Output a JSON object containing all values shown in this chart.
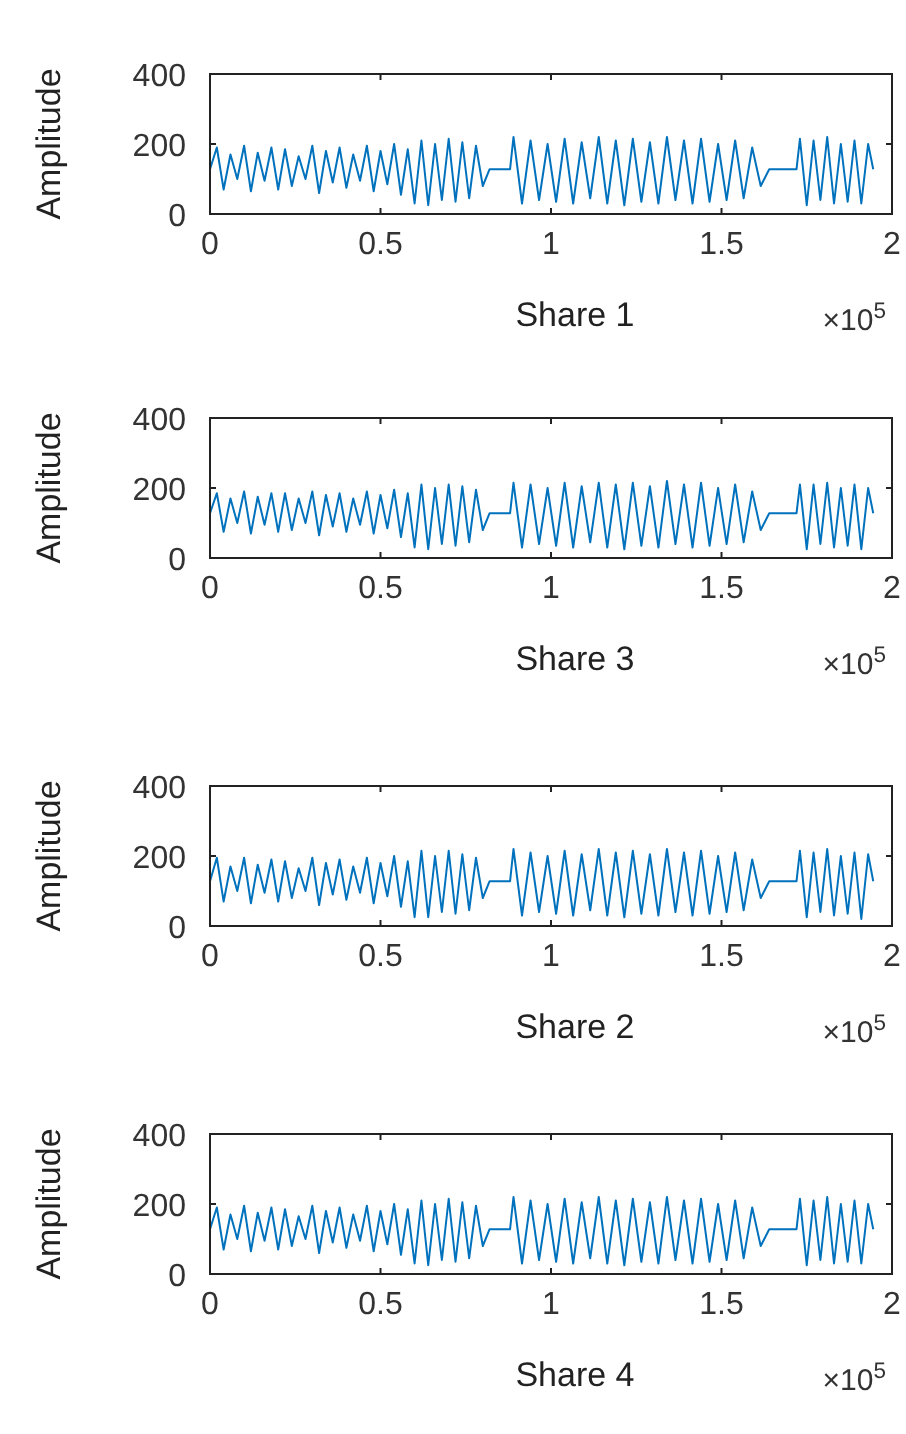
{
  "chart_data": [
    {
      "type": "line",
      "xlabel": "Share 1",
      "ylabel": "Amplitude",
      "annotations": [
        "×10$^{5}$"
      ],
      "xlim": [
        0,
        2
      ],
      "ylim": [
        0,
        400
      ],
      "yticks": [
        0,
        200,
        400
      ],
      "xticks": [
        0,
        0.5,
        1,
        1.5,
        2
      ],
      "x": [
        0,
        0.02,
        0.04,
        0.06,
        0.08,
        0.1,
        0.12,
        0.14,
        0.16,
        0.18,
        0.2,
        0.22,
        0.24,
        0.26,
        0.28,
        0.3,
        0.32,
        0.34,
        0.36,
        0.38,
        0.4,
        0.42,
        0.44,
        0.46,
        0.48,
        0.5,
        0.52,
        0.54,
        0.56,
        0.58,
        0.6,
        0.62,
        0.64,
        0.66,
        0.68,
        0.7,
        0.72,
        0.74,
        0.76,
        0.78,
        0.8,
        0.82,
        0.88,
        0.89,
        0.915,
        0.94,
        0.965,
        0.99,
        1.015,
        1.04,
        1.065,
        1.09,
        1.115,
        1.14,
        1.165,
        1.19,
        1.215,
        1.24,
        1.265,
        1.29,
        1.315,
        1.34,
        1.365,
        1.39,
        1.415,
        1.44,
        1.465,
        1.49,
        1.515,
        1.54,
        1.565,
        1.59,
        1.615,
        1.64,
        1.72,
        1.73,
        1.75,
        1.77,
        1.79,
        1.81,
        1.83,
        1.85,
        1.87,
        1.89,
        1.91,
        1.93,
        1.945
      ],
      "series": [
        {
          "color": "#0072bd",
          "values": [
            128,
            190,
            70,
            170,
            100,
            195,
            65,
            175,
            95,
            190,
            70,
            185,
            80,
            165,
            100,
            195,
            60,
            180,
            90,
            190,
            75,
            170,
            95,
            195,
            65,
            180,
            85,
            200,
            55,
            185,
            30,
            210,
            25,
            200,
            40,
            215,
            35,
            205,
            45,
            195,
            80,
            128,
            128,
            220,
            30,
            210,
            40,
            200,
            35,
            215,
            30,
            205,
            45,
            220,
            30,
            210,
            25,
            215,
            35,
            205,
            30,
            220,
            40,
            210,
            30,
            215,
            35,
            200,
            40,
            210,
            45,
            190,
            80,
            128,
            128,
            215,
            25,
            210,
            40,
            220,
            30,
            200,
            35,
            210,
            30,
            200,
            128
          ]
        }
      ]
    },
    {
      "type": "line",
      "xlabel": "Share 3",
      "ylabel": "Amplitude",
      "annotations": [
        "×10$^{5}$"
      ],
      "xlim": [
        0,
        2
      ],
      "ylim": [
        0,
        400
      ],
      "yticks": [
        0,
        200,
        400
      ],
      "xticks": [
        0,
        0.5,
        1,
        1.5,
        2
      ],
      "x": [
        0,
        0.02,
        0.04,
        0.06,
        0.08,
        0.1,
        0.12,
        0.14,
        0.16,
        0.18,
        0.2,
        0.22,
        0.24,
        0.26,
        0.28,
        0.3,
        0.32,
        0.34,
        0.36,
        0.38,
        0.4,
        0.42,
        0.44,
        0.46,
        0.48,
        0.5,
        0.52,
        0.54,
        0.56,
        0.58,
        0.6,
        0.62,
        0.64,
        0.66,
        0.68,
        0.7,
        0.72,
        0.74,
        0.76,
        0.78,
        0.8,
        0.82,
        0.88,
        0.89,
        0.915,
        0.94,
        0.965,
        0.99,
        1.015,
        1.04,
        1.065,
        1.09,
        1.115,
        1.14,
        1.165,
        1.19,
        1.215,
        1.24,
        1.265,
        1.29,
        1.315,
        1.34,
        1.365,
        1.39,
        1.415,
        1.44,
        1.465,
        1.49,
        1.515,
        1.54,
        1.565,
        1.59,
        1.615,
        1.64,
        1.72,
        1.73,
        1.75,
        1.77,
        1.79,
        1.81,
        1.83,
        1.85,
        1.87,
        1.89,
        1.91,
        1.93,
        1.945
      ],
      "series": [
        {
          "color": "#0072bd",
          "values": [
            128,
            185,
            75,
            170,
            100,
            190,
            70,
            175,
            95,
            185,
            75,
            185,
            80,
            170,
            100,
            190,
            65,
            180,
            90,
            185,
            75,
            170,
            95,
            190,
            70,
            180,
            85,
            195,
            60,
            185,
            30,
            210,
            25,
            200,
            40,
            210,
            35,
            205,
            45,
            195,
            80,
            128,
            128,
            215,
            30,
            210,
            40,
            200,
            35,
            215,
            30,
            205,
            45,
            215,
            30,
            210,
            25,
            215,
            35,
            205,
            30,
            220,
            40,
            210,
            30,
            215,
            35,
            200,
            40,
            210,
            45,
            190,
            80,
            128,
            128,
            210,
            25,
            210,
            40,
            215,
            30,
            200,
            35,
            210,
            25,
            200,
            128
          ]
        }
      ]
    },
    {
      "type": "line",
      "xlabel": "Share 2",
      "ylabel": "Amplitude",
      "annotations": [
        "×10$^{5}$"
      ],
      "xlim": [
        0,
        2
      ],
      "ylim": [
        0,
        400
      ],
      "yticks": [
        0,
        200,
        400
      ],
      "xticks": [
        0,
        0.5,
        1,
        1.5,
        2
      ],
      "x": [
        0,
        0.02,
        0.04,
        0.06,
        0.08,
        0.1,
        0.12,
        0.14,
        0.16,
        0.18,
        0.2,
        0.22,
        0.24,
        0.26,
        0.28,
        0.3,
        0.32,
        0.34,
        0.36,
        0.38,
        0.4,
        0.42,
        0.44,
        0.46,
        0.48,
        0.5,
        0.52,
        0.54,
        0.56,
        0.58,
        0.6,
        0.62,
        0.64,
        0.66,
        0.68,
        0.7,
        0.72,
        0.74,
        0.76,
        0.78,
        0.8,
        0.82,
        0.88,
        0.89,
        0.915,
        0.94,
        0.965,
        0.99,
        1.015,
        1.04,
        1.065,
        1.09,
        1.115,
        1.14,
        1.165,
        1.19,
        1.215,
        1.24,
        1.265,
        1.29,
        1.315,
        1.34,
        1.365,
        1.39,
        1.415,
        1.44,
        1.465,
        1.49,
        1.515,
        1.54,
        1.565,
        1.59,
        1.615,
        1.64,
        1.72,
        1.73,
        1.75,
        1.77,
        1.79,
        1.81,
        1.83,
        1.85,
        1.87,
        1.89,
        1.91,
        1.93,
        1.945
      ],
      "series": [
        {
          "color": "#0072bd",
          "values": [
            128,
            195,
            70,
            170,
            100,
            195,
            65,
            175,
            95,
            190,
            70,
            185,
            80,
            165,
            100,
            195,
            60,
            180,
            90,
            190,
            75,
            170,
            95,
            195,
            65,
            180,
            85,
            200,
            55,
            185,
            25,
            215,
            25,
            200,
            40,
            215,
            35,
            205,
            45,
            195,
            80,
            128,
            128,
            220,
            30,
            210,
            40,
            200,
            35,
            215,
            30,
            205,
            45,
            220,
            30,
            210,
            25,
            215,
            35,
            205,
            30,
            220,
            40,
            210,
            30,
            215,
            35,
            200,
            40,
            210,
            45,
            190,
            80,
            128,
            128,
            215,
            25,
            210,
            40,
            220,
            30,
            200,
            35,
            210,
            20,
            205,
            128
          ]
        }
      ]
    },
    {
      "type": "line",
      "xlabel": "Share 4",
      "ylabel": "Amplitude",
      "annotations": [
        "×10$^{5}$"
      ],
      "xlim": [
        0,
        2
      ],
      "ylim": [
        0,
        400
      ],
      "yticks": [
        0,
        200,
        400
      ],
      "xticks": [
        0,
        0.5,
        1,
        1.5,
        2
      ],
      "x": [
        0,
        0.02,
        0.04,
        0.06,
        0.08,
        0.1,
        0.12,
        0.14,
        0.16,
        0.18,
        0.2,
        0.22,
        0.24,
        0.26,
        0.28,
        0.3,
        0.32,
        0.34,
        0.36,
        0.38,
        0.4,
        0.42,
        0.44,
        0.46,
        0.48,
        0.5,
        0.52,
        0.54,
        0.56,
        0.58,
        0.6,
        0.62,
        0.64,
        0.66,
        0.68,
        0.7,
        0.72,
        0.74,
        0.76,
        0.78,
        0.8,
        0.82,
        0.88,
        0.89,
        0.915,
        0.94,
        0.965,
        0.99,
        1.015,
        1.04,
        1.065,
        1.09,
        1.115,
        1.14,
        1.165,
        1.19,
        1.215,
        1.24,
        1.265,
        1.29,
        1.315,
        1.34,
        1.365,
        1.39,
        1.415,
        1.44,
        1.465,
        1.49,
        1.515,
        1.54,
        1.565,
        1.59,
        1.615,
        1.64,
        1.72,
        1.73,
        1.75,
        1.77,
        1.79,
        1.81,
        1.83,
        1.85,
        1.87,
        1.89,
        1.91,
        1.93,
        1.945
      ],
      "series": [
        {
          "color": "#0072bd",
          "values": [
            128,
            190,
            70,
            170,
            100,
            195,
            65,
            175,
            95,
            190,
            70,
            185,
            80,
            165,
            100,
            195,
            60,
            180,
            90,
            190,
            75,
            170,
            95,
            195,
            65,
            180,
            85,
            200,
            55,
            185,
            30,
            210,
            25,
            200,
            40,
            215,
            35,
            205,
            45,
            195,
            80,
            128,
            128,
            220,
            30,
            210,
            40,
            200,
            35,
            215,
            30,
            205,
            45,
            220,
            30,
            210,
            25,
            215,
            35,
            205,
            30,
            220,
            40,
            210,
            30,
            215,
            35,
            200,
            40,
            210,
            45,
            190,
            80,
            128,
            128,
            215,
            25,
            210,
            40,
            220,
            30,
            200,
            35,
            210,
            30,
            200,
            128
          ]
        }
      ]
    }
  ]
}
